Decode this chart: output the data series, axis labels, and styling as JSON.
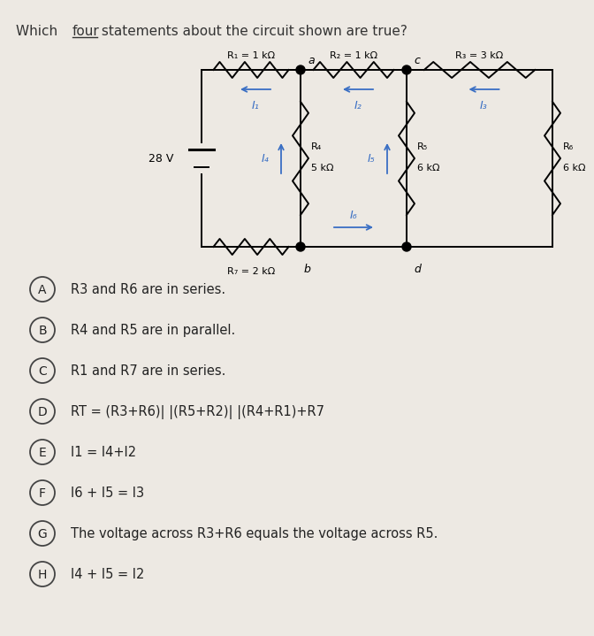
{
  "background_color": "#ede9e3",
  "title_parts": [
    "Which ",
    "four",
    " statements about the circuit shown are true?"
  ],
  "circuit": {
    "V_label": "28 V",
    "R1_label": "R₁ = 1 kΩ",
    "R2_label": "R₂ = 1 kΩ",
    "R3_label": "R₃ = 3 kΩ",
    "R4_label1": "R₄",
    "R4_label2": "5 kΩ",
    "R5_label1": "R₅",
    "R5_label2": "6 kΩ",
    "R6_label1": "R₆",
    "R6_label2": "6 kΩ",
    "R7_label": "R₇ = 2 kΩ",
    "node_a": "a",
    "node_b": "b",
    "node_c": "c",
    "node_d": "d",
    "I1": "I₁",
    "I2": "I₂",
    "I3": "I₃",
    "I4": "I₄",
    "I5": "I₅",
    "I6": "I₆"
  },
  "options": [
    {
      "letter": "A",
      "text": "R3 and R6 are in series."
    },
    {
      "letter": "B",
      "text": "R4 and R5 are in parallel."
    },
    {
      "letter": "C",
      "text": "R1 and R7 are in series."
    },
    {
      "letter": "D",
      "text": "RT = (R3+R6)| |(R5+R2)| |(R4+R1)+R7"
    },
    {
      "letter": "E",
      "text": "I1 = I4+I2"
    },
    {
      "letter": "F",
      "text": "I6 + I5 = I3"
    },
    {
      "letter": "G",
      "text": "The voltage across R3+R6 equals the voltage across R5."
    },
    {
      "letter": "H",
      "text": "I4 + I5 = I2"
    }
  ],
  "arrow_color": "#3a6fc4",
  "wire_color": "#000000",
  "text_color": "#222222",
  "lw": 1.4,
  "font_size_title": 11,
  "font_size_circuit": 9,
  "font_size_opt": 11
}
